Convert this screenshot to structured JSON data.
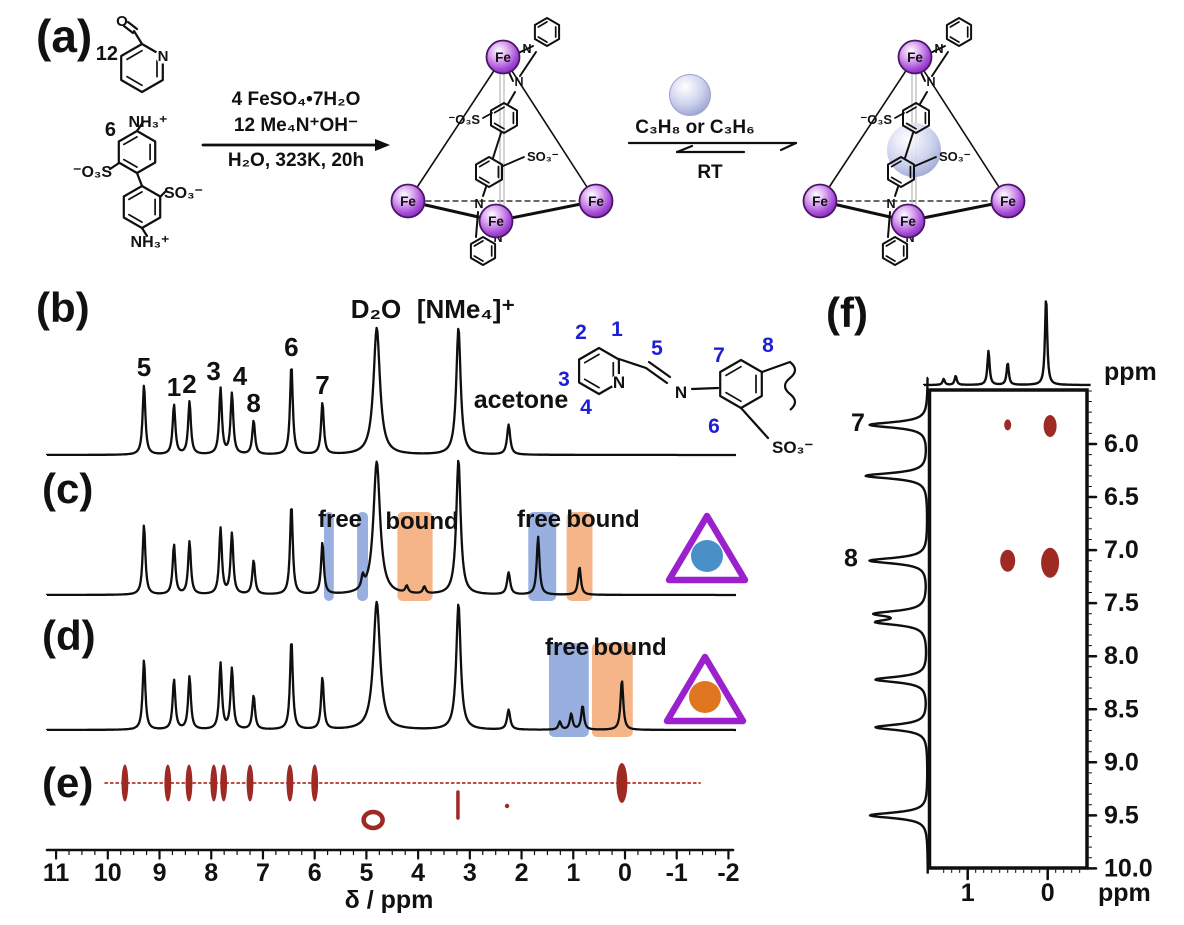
{
  "panels": {
    "a": "(a)",
    "b": "(b)",
    "c": "(c)",
    "d": "(d)",
    "e": "(e)",
    "f": "(f)"
  },
  "labels": {
    "free": "free",
    "bound": "bound"
  },
  "colors": {
    "blue_label": "#1e1ed2",
    "dark_red": "#9e2a24",
    "dotted_line": "#bf4a42",
    "bar_blue": "#92abdd",
    "bar_orange": "#f4b183",
    "triangle_purple": "#9a21cc",
    "circle_blue": "#4a90c8",
    "circle_orange": "#e0761f",
    "fe_fill": "#a346d4",
    "fe_stroke": "#4a1566",
    "guest_fill": "#b9bfe2",
    "black": "#0f0f0f"
  },
  "scheme": {
    "aldehyde_count": "12",
    "amine_count": "6",
    "atom_N": "N",
    "atom_O": "O",
    "ammonium": "NH₃⁺",
    "sulfonate_left": "⁻O₃S",
    "sulfonate_right": "SO₃⁻",
    "conditions_line1": "4 FeSO₄•7H₂O",
    "conditions_line2": "12 Me₄N⁺OH⁻",
    "conditions_line3": "H₂O, 323K, 20h",
    "fe": "Fe",
    "equilibrium_guests": "C₃H₈ or C₃H₆",
    "equilibrium_temp": "RT"
  },
  "inset": {
    "n1": "1",
    "n2": "2",
    "n3": "3",
    "n4": "4",
    "n5": "5",
    "n6": "6",
    "n7": "7",
    "n8": "8",
    "pyridine_N": "N",
    "imine_N": "N",
    "sulfonate": "SO₃⁻"
  },
  "chart_data": [
    {
      "id": "shared_ligand",
      "type": "line",
      "role": "cage ligand aromatic/imine peaks shared by panels b, c, d",
      "x_unit": "ppm",
      "peaks": [
        {
          "ppm": 9.3,
          "h": 70,
          "label": "5"
        },
        {
          "ppm": 8.72,
          "h": 50,
          "label": "1"
        },
        {
          "ppm": 8.42,
          "h": 53,
          "label": "2"
        },
        {
          "ppm": 7.82,
          "h": 66,
          "label": "3"
        },
        {
          "ppm": 7.6,
          "h": 61,
          "label": "4"
        },
        {
          "ppm": 7.18,
          "h": 34,
          "label": "8"
        },
        {
          "ppm": 6.45,
          "h": 90,
          "label": "6"
        },
        {
          "ppm": 5.85,
          "h": 52,
          "label": "7"
        }
      ]
    },
    {
      "id": "b",
      "type": "line",
      "title": "1H NMR of empty cage in D2O",
      "solvent_peaks": [
        {
          "ppm": 4.8,
          "h": 127,
          "w": 2.5,
          "label": "D₂O"
        },
        {
          "ppm": 3.22,
          "h": 127,
          "w": 1.7,
          "label": "[NMe₄]⁺"
        },
        {
          "ppm": 2.25,
          "h": 30,
          "w": 1.2,
          "label": "acetone"
        }
      ]
    },
    {
      "id": "c",
      "type": "line",
      "title": "cage + C3H6 (propene)",
      "marker": "blue circle in purple triangle",
      "solvent_peaks": [
        {
          "ppm": 4.8,
          "h": 133,
          "w": 2.6
        },
        {
          "ppm": 3.22,
          "h": 135,
          "w": 1.7
        }
      ],
      "extra_peaks": [
        {
          "ppm": 5.07,
          "h": 12
        },
        {
          "ppm": 4.22,
          "h": 7
        },
        {
          "ppm": 3.88,
          "h": 7
        },
        {
          "ppm": 2.25,
          "h": 22,
          "w": 1.2
        },
        {
          "ppm": 1.68,
          "h": 58
        },
        {
          "ppm": 0.88,
          "h": 28
        }
      ],
      "highlights": [
        {
          "label": "free",
          "ppm_from": 5.82,
          "ppm_to": 5.63
        },
        {
          "label": "free",
          "ppm_from": 5.18,
          "ppm_to": 4.97
        },
        {
          "label": "bound",
          "ppm_from": 4.4,
          "ppm_to": 3.72
        },
        {
          "label": "free",
          "ppm_from": 1.87,
          "ppm_to": 1.33
        },
        {
          "label": "bound",
          "ppm_from": 1.13,
          "ppm_to": 0.63
        }
      ]
    },
    {
      "id": "d",
      "type": "line",
      "title": "cage + C3H8 (propane)",
      "marker": "orange circle in purple triangle",
      "solvent_peaks": [
        {
          "ppm": 4.8,
          "h": 128,
          "w": 2.6
        },
        {
          "ppm": 3.22,
          "h": 126,
          "w": 1.7
        }
      ],
      "extra_peaks": [
        {
          "ppm": 2.25,
          "h": 20,
          "w": 1.2
        },
        {
          "ppm": 1.26,
          "h": 8
        },
        {
          "ppm": 1.04,
          "h": 16
        },
        {
          "ppm": 0.82,
          "h": 24
        },
        {
          "ppm": 0.06,
          "h": 50
        }
      ],
      "highlights": [
        {
          "label": "free",
          "ppm_from": 1.47,
          "ppm_to": 0.7
        },
        {
          "label": "bound",
          "ppm_from": 0.64,
          "ppm_to": -0.15
        }
      ]
    },
    {
      "id": "e",
      "type": "scatter",
      "title": "correlation spot row",
      "row_spots_ppm": [
        9.67,
        8.84,
        8.43,
        7.95,
        7.76,
        7.25,
        6.48,
        6.0,
        0.06
      ],
      "below_spots": [
        {
          "ppm": 4.87,
          "kind": "ring"
        },
        {
          "ppm": 3.23,
          "kind": "streak"
        },
        {
          "ppm": 2.28,
          "kind": "dot"
        }
      ]
    },
    {
      "id": "x_axis",
      "ticks": [
        11,
        10,
        9,
        8,
        7,
        6,
        5,
        4,
        3,
        2,
        1,
        0,
        -1,
        -2
      ],
      "label": "δ / ppm",
      "range": [
        11.2,
        -2.1
      ]
    },
    {
      "id": "f",
      "type": "heatmap",
      "title": "2D NMR region",
      "f2_axis": {
        "ticks": [
          "1",
          "0"
        ],
        "label": "ppm",
        "range": [
          1.47,
          -0.49
        ]
      },
      "f1_axis": {
        "ticks": [
          "6.0",
          "6.5",
          "7.0",
          "7.5",
          "8.0",
          "8.5",
          "9.0",
          "9.5",
          "10.0"
        ],
        "label": "ppm",
        "range": [
          5.49,
          10.0
        ]
      },
      "top_trace_peaks": [
        {
          "ppm": 1.3,
          "h": 6
        },
        {
          "ppm": 1.15,
          "h": 9
        },
        {
          "ppm": 0.74,
          "h": 34
        },
        {
          "ppm": 0.5,
          "h": 22
        },
        {
          "ppm": 0.02,
          "h": 88
        }
      ],
      "side_trace_peaks": [
        {
          "ppm": 5.82,
          "h": 58,
          "label": "7"
        },
        {
          "ppm": 6.3,
          "h": 62
        },
        {
          "ppm": 7.1,
          "h": 58,
          "label": "8"
        },
        {
          "ppm": 7.6,
          "h": 48
        },
        {
          "ppm": 7.68,
          "h": 46
        },
        {
          "ppm": 8.22,
          "h": 52
        },
        {
          "ppm": 8.67,
          "h": 52
        },
        {
          "ppm": 9.5,
          "h": 58
        }
      ],
      "cross_peaks": [
        {
          "f2": 0.5,
          "f1": 5.82,
          "rx": 3.5,
          "ry": 5.5
        },
        {
          "f2": -0.03,
          "f1": 5.83,
          "rx": 6.5,
          "ry": 11
        },
        {
          "f2": 0.5,
          "f1": 7.1,
          "rx": 7.5,
          "ry": 11
        },
        {
          "f2": -0.03,
          "f1": 7.12,
          "rx": 9,
          "ry": 15
        }
      ]
    }
  ]
}
